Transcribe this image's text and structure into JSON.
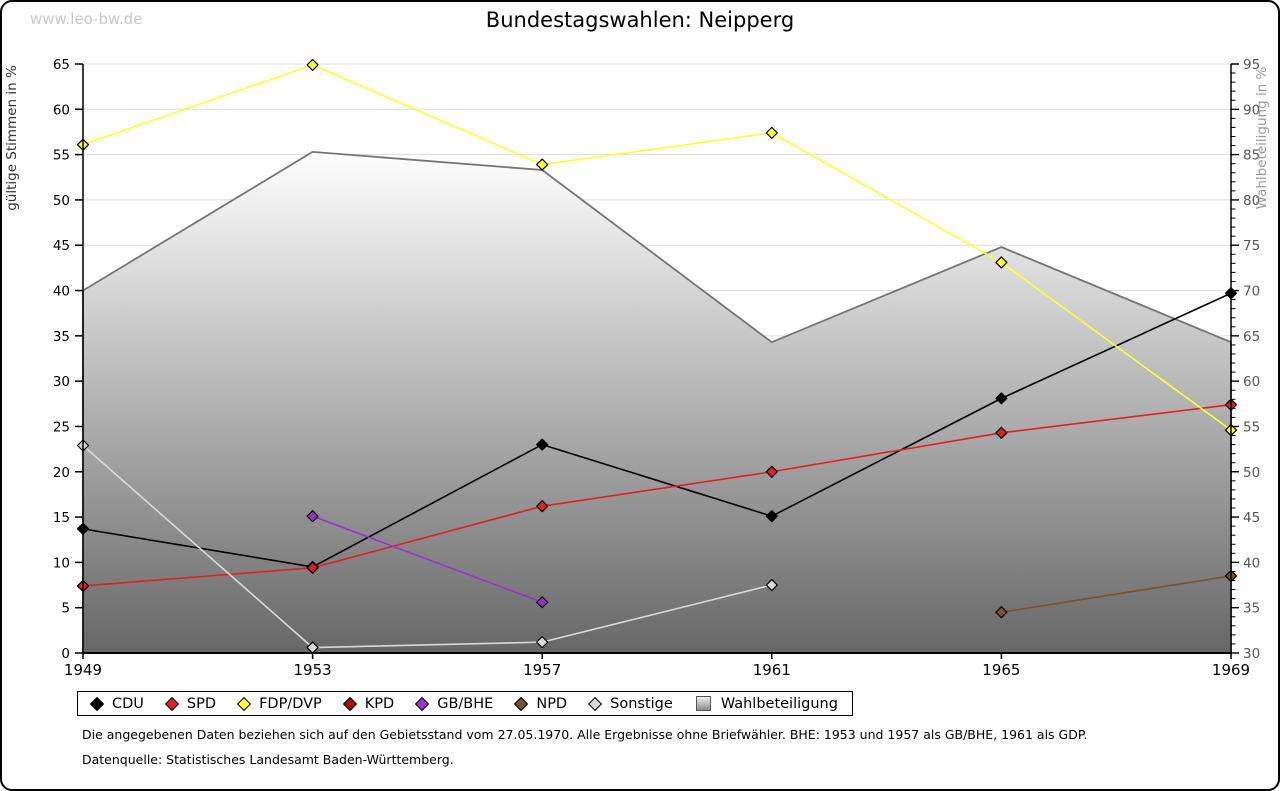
{
  "watermark": "www.leo-bw.de",
  "title": "Bundestagswahlen: Neipperg",
  "chart_data": {
    "type": "line",
    "title": "Bundestagswahlen: Neipperg",
    "categories": [
      "1949",
      "1953",
      "1957",
      "1961",
      "1965",
      "1969"
    ],
    "left_axis": {
      "label": "gültige Stimmen in %",
      "min": 0,
      "max": 65,
      "step": 5
    },
    "right_axis": {
      "label": "Wahlbeteiligung in %",
      "min": 30,
      "max": 95,
      "step": 5,
      "minor_step": 1
    },
    "grid": true,
    "legend_position": "bottom",
    "series": [
      {
        "name": "CDU",
        "color": "#000000",
        "axis": "left",
        "values": [
          13.7,
          9.5,
          23.0,
          15.1,
          28.1,
          39.7
        ]
      },
      {
        "name": "SPD",
        "color": "#dd2222",
        "axis": "left",
        "values": [
          7.4,
          9.4,
          16.2,
          20.0,
          24.3,
          27.4
        ]
      },
      {
        "name": "FDP/DVP",
        "color": "#ffff33",
        "axis": "left",
        "values": [
          56.1,
          64.9,
          53.9,
          57.4,
          43.1,
          24.6
        ]
      },
      {
        "name": "KPD",
        "color": "#aa1111",
        "axis": "left",
        "values": [
          null,
          null,
          null,
          null,
          null,
          null
        ]
      },
      {
        "name": "GB/BHE",
        "color": "#9933cc",
        "axis": "left",
        "values": [
          null,
          15.1,
          5.6,
          null,
          null,
          null
        ]
      },
      {
        "name": "NPD",
        "color": "#7a5230",
        "axis": "left",
        "values": [
          null,
          null,
          null,
          null,
          4.5,
          8.5
        ]
      },
      {
        "name": "Sonstige",
        "color": "#d9d9d9",
        "axis": "left",
        "values": [
          22.9,
          0.6,
          1.2,
          7.5,
          null,
          null
        ]
      }
    ],
    "area_series": {
      "name": "Wahlbeteiligung",
      "axis": "right",
      "stroke": "#757575",
      "fill_top": "#ffffff",
      "fill_bottom": "#676767",
      "values": [
        70.0,
        85.3,
        83.3,
        64.3,
        74.8,
        64.3
      ]
    }
  },
  "legend": {
    "items": [
      {
        "label": "CDU",
        "marker": "diamond",
        "color": "#000000"
      },
      {
        "label": "SPD",
        "marker": "diamond",
        "color": "#dd2222"
      },
      {
        "label": "FDP/DVP",
        "marker": "diamond",
        "color": "#ffff33"
      },
      {
        "label": "KPD",
        "marker": "diamond",
        "color": "#aa1111"
      },
      {
        "label": "GB/BHE",
        "marker": "diamond",
        "color": "#9933cc"
      },
      {
        "label": "NPD",
        "marker": "diamond",
        "color": "#7a5230"
      },
      {
        "label": "Sonstige",
        "marker": "diamond",
        "color": "#d9d9d9"
      },
      {
        "label": "Wahlbeteiligung",
        "marker": "gradient-square",
        "color": "#aaaaaa"
      }
    ]
  },
  "notes": [
    "Die angegebenen Daten beziehen sich auf den Gebietsstand vom 27.05.1970. Alle Ergebnisse ohne Briefwähler. BHE: 1953 und 1957 als GB/BHE, 1961 als GDP.",
    "Datenquelle: Statistisches Landesamt Baden-Württemberg."
  ]
}
